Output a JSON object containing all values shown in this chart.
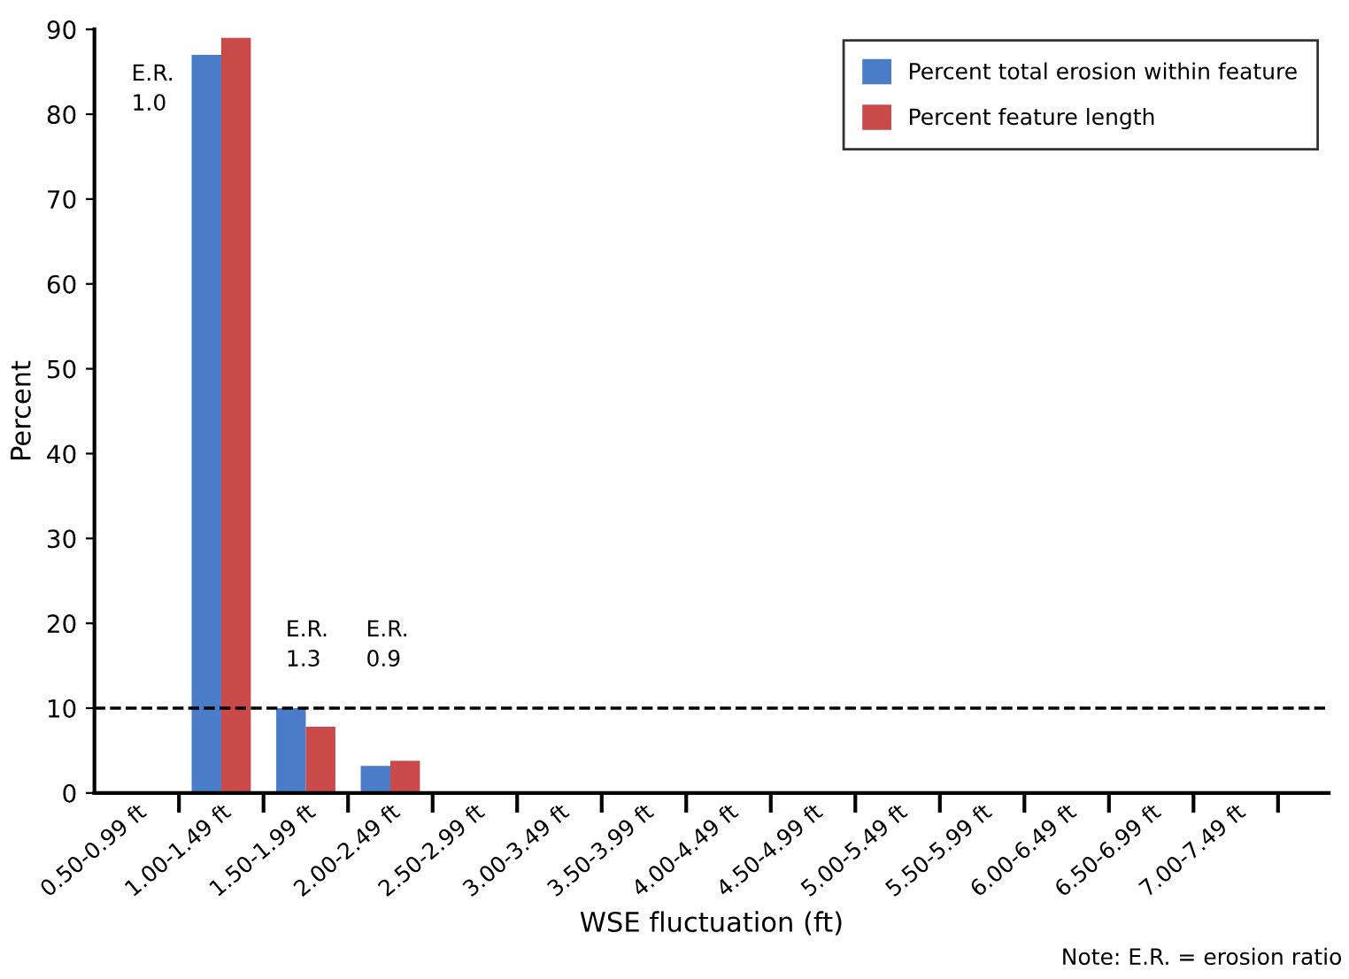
{
  "chart_data": {
    "type": "bar",
    "xlabel": "WSE fluctuation (ft)",
    "ylabel": "Percent",
    "categories": [
      "0.50-0.99 ft",
      "1.00-1.49 ft",
      "1.50-1.99 ft",
      "2.00-2.49 ft",
      "2.50-2.99 ft",
      "3.00-3.49 ft",
      "3.50-3.99 ft",
      "4.00-4.49 ft",
      "4.50-4.99 ft",
      "5.00-5.49 ft",
      "5.50-5.99 ft",
      "6.00-6.49 ft",
      "6.50-6.99 ft",
      "7.00-7.49 ft"
    ],
    "series": [
      {
        "name": "Percent total erosion within feature",
        "color": "#4a7cc7",
        "values": [
          0,
          87,
          10,
          3.2,
          0,
          0,
          0,
          0,
          0,
          0,
          0,
          0,
          0,
          0
        ]
      },
      {
        "name": "Percent feature length",
        "color": "#c94a48",
        "values": [
          0,
          89,
          7.8,
          3.8,
          0,
          0,
          0,
          0,
          0,
          0,
          0,
          0,
          0,
          0
        ]
      }
    ],
    "ylim": [
      0,
      90
    ],
    "yticks": [
      0,
      10,
      20,
      30,
      40,
      50,
      60,
      70,
      80,
      90
    ],
    "ref_lines": [
      {
        "axis": "y",
        "value": 10,
        "line_style": "dashed",
        "color": "#000000"
      }
    ],
    "annotations": [
      "E.R.\n1.0",
      "E.R.\n1.3",
      "E.R.\n0.9",
      "Note: E.R. = erosion ratio"
    ],
    "grid": false,
    "legend": "top right"
  }
}
